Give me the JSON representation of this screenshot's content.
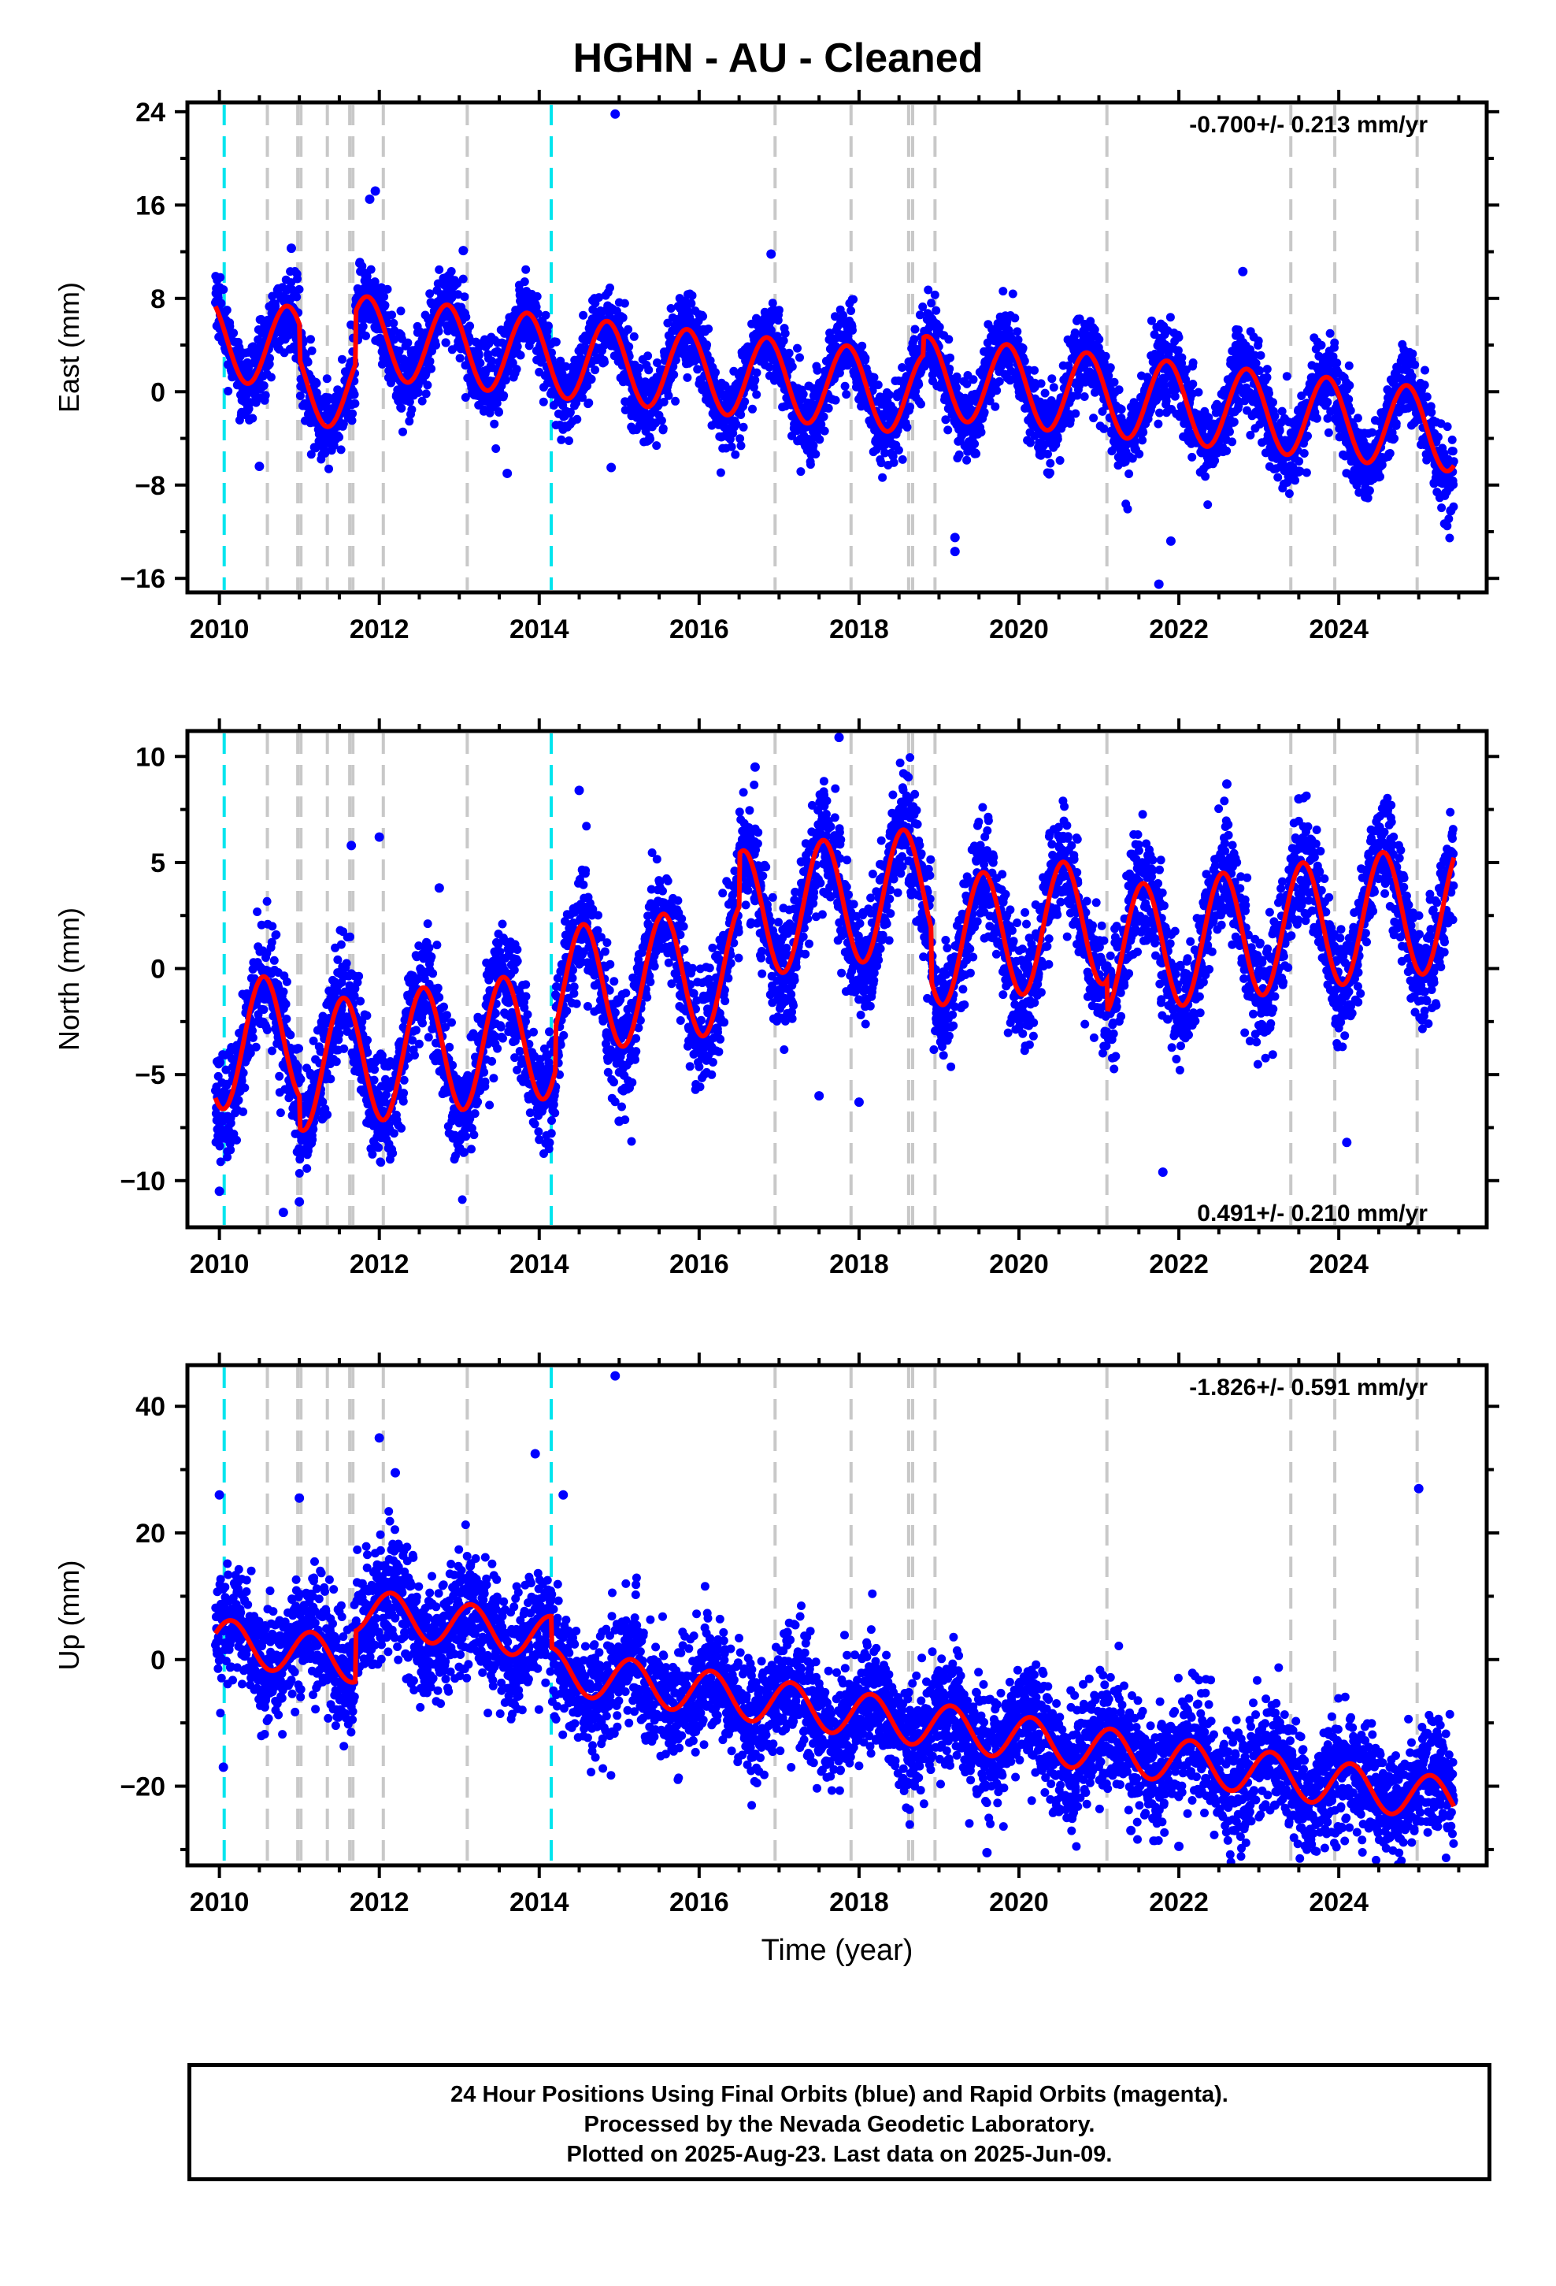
{
  "title": "HGHN  - AU - Cleaned",
  "caption": [
    "24 Hour Positions Using Final Orbits (blue) and Rapid Orbits (magenta).",
    "Processed by the Nevada Geodetic Laboratory.",
    "Plotted on 2025-Aug-23. Last data on 2025-Jun-09."
  ],
  "colors": {
    "final_points": "#0000ff",
    "model_line": "#ff0000",
    "antenna_change": "#00e5ee",
    "equipment_change": "#c8c8c8"
  },
  "chart_data": [
    {
      "type": "scatter",
      "ylabel": "East (mm)",
      "xlabel": "",
      "xlim": [
        2009.6,
        2025.85
      ],
      "ylim": [
        -17.2,
        24.8
      ],
      "yticks": [
        24,
        16,
        8,
        0,
        -8,
        -16
      ],
      "xticks": [
        2010,
        2012,
        2014,
        2016,
        2018,
        2020,
        2022,
        2024
      ],
      "rate_text": "-0.700+/- 0.213 mm/yr",
      "rate_position": "top-right",
      "model": {
        "offset": 6.5,
        "rate": -0.7,
        "amp": 3.5,
        "peak": 0.85
      },
      "noise": 1.7,
      "steps": [
        {
          "t": 2011.0,
          "dy": -3.0
        },
        {
          "t": 2011.7,
          "dy": 4.5
        },
        {
          "t": 2018.8,
          "dy": 1.5
        }
      ],
      "outliers": [
        [
          2014.95,
          23.8
        ],
        [
          2011.95,
          17.2
        ],
        [
          2011.88,
          16.5
        ],
        [
          2010.9,
          12.3
        ],
        [
          2013.05,
          12.1
        ],
        [
          2016.9,
          11.8
        ],
        [
          2022.8,
          10.3
        ],
        [
          2019.2,
          -12.5
        ],
        [
          2019.2,
          -13.7
        ],
        [
          2021.9,
          -12.8
        ],
        [
          2021.75,
          -16.5
        ],
        [
          2013.6,
          -7.0
        ],
        [
          2025.4,
          -10.2
        ],
        [
          2014.9,
          -6.5
        ],
        [
          2010.5,
          -6.4
        ]
      ]
    },
    {
      "type": "scatter",
      "ylabel": "North (mm)",
      "xlabel": "",
      "xlim": [
        2009.6,
        2025.85
      ],
      "ylim": [
        -12.2,
        11.2
      ],
      "yticks": [
        10,
        5,
        0,
        -5,
        -10
      ],
      "xticks": [
        2010,
        2012,
        2014,
        2016,
        2018,
        2020,
        2022,
        2024
      ],
      "rate_text": "0.491+/- 0.210 mm/yr",
      "rate_position": "bottom-right",
      "model": {
        "offset": -6.5,
        "rate": 0.49,
        "amp": 3.0,
        "peak": 0.55
      },
      "noise": 1.3,
      "steps": [
        {
          "t": 2011.0,
          "dy": -1.5
        },
        {
          "t": 2014.2,
          "dy": 2.0
        },
        {
          "t": 2016.5,
          "dy": 2.5
        },
        {
          "t": 2018.9,
          "dy": -2.5
        },
        {
          "t": 2021.1,
          "dy": -1.5
        }
      ],
      "outliers": [
        [
          2017.75,
          10.9
        ],
        [
          2014.5,
          8.4
        ],
        [
          2016.7,
          9.5
        ],
        [
          2022.6,
          8.7
        ],
        [
          2023.5,
          8.0
        ],
        [
          2011.65,
          5.8
        ],
        [
          2012.0,
          6.2
        ],
        [
          2012.75,
          3.8
        ],
        [
          2010.0,
          -10.5
        ],
        [
          2010.8,
          -11.5
        ],
        [
          2011.0,
          -11.0
        ],
        [
          2021.8,
          -9.6
        ],
        [
          2024.1,
          -8.2
        ],
        [
          2015.0,
          -7.2
        ],
        [
          2017.5,
          -6.0
        ],
        [
          2018.0,
          -6.3
        ]
      ]
    },
    {
      "type": "scatter",
      "ylabel": "Up (mm)",
      "xlabel": "Time (year)",
      "xlim": [
        2009.6,
        2025.85
      ],
      "ylim": [
        -32.5,
        46.5
      ],
      "yticks": [
        40,
        20,
        0,
        -20
      ],
      "xticks": [
        2010,
        2012,
        2014,
        2016,
        2018,
        2020,
        2022,
        2024
      ],
      "rate_text": "-1.826+/- 0.591 mm/yr",
      "rate_position": "top-right",
      "model": {
        "offset": 5.0,
        "rate": -1.83,
        "amp": 3.5,
        "peak": 0.15
      },
      "noise": 4.5,
      "steps": [
        {
          "t": 2011.7,
          "dy": 8.0
        },
        {
          "t": 2014.15,
          "dy": -5.0
        }
      ],
      "outliers": [
        [
          2014.95,
          44.8
        ],
        [
          2012.0,
          35.0
        ],
        [
          2013.95,
          32.5
        ],
        [
          2012.2,
          29.5
        ],
        [
          2014.3,
          26.0
        ],
        [
          2010.0,
          26.0
        ],
        [
          2025.0,
          27.0
        ],
        [
          2011.0,
          25.5
        ],
        [
          2010.05,
          -17.0
        ],
        [
          2019.6,
          -30.5
        ],
        [
          2022.0,
          -29.5
        ],
        [
          2021.4,
          -27.0
        ],
        [
          2022.7,
          -27.0
        ],
        [
          2022.5,
          -24.0
        ],
        [
          2020.5,
          -24.0
        ],
        [
          2023.2,
          -23.0
        ],
        [
          2025.2,
          -20.0
        ]
      ]
    }
  ],
  "offsets": {
    "antenna": [
      2010.06,
      2014.15
    ],
    "equipment": [
      2010.6,
      2010.98,
      2011.02,
      2011.35,
      2011.63,
      2011.67,
      2012.05,
      2013.1,
      2016.95,
      2017.9,
      2018.62,
      2018.67,
      2018.95,
      2021.1,
      2023.4,
      2023.95,
      2024.98
    ]
  }
}
